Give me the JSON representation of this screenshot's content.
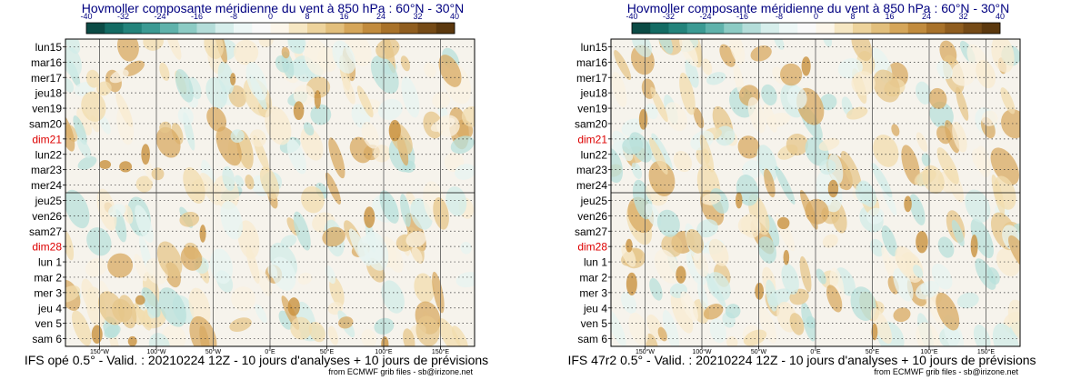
{
  "chart_data": [
    {
      "type": "heatmap",
      "title": "Hovmoller composante méridienne du vent à 850 hPa : 60°N - 30°N",
      "colorbar": {
        "ticks": [
          "-40",
          "-32",
          "-24",
          "-16",
          "-8",
          "0",
          "8",
          "16",
          "24",
          "32",
          "40"
        ],
        "colors": [
          "#0b4b45",
          "#136b63",
          "#23837b",
          "#3b9a93",
          "#5fb2ab",
          "#8ccbc4",
          "#b4ddd9",
          "#d6eeeb",
          "#edf7f6",
          "#f9f9f9",
          "#fcf6ea",
          "#f6e7c3",
          "#edd39c",
          "#e2bf7c",
          "#d5a65a",
          "#c18b3d",
          "#a8722a",
          "#8f5d1f",
          "#754a16",
          "#5b380e"
        ]
      },
      "x_tick_labels": [
        "150°W",
        "100°W",
        "50°W",
        "0°E",
        "50°E",
        "100°E",
        "150°E"
      ],
      "y_tick_labels": [
        "lun15",
        "mar16",
        "mer17",
        "jeu18",
        "ven19",
        "sam20",
        "dim21",
        "lun22",
        "mar23",
        "mer24",
        "jeu25",
        "ven26",
        "sam27",
        "dim28",
        "lun 1",
        "mar 2",
        "mer 3",
        "jeu 4",
        "ven 5",
        "sam 6"
      ],
      "weekend_color": "#dd0000",
      "highlight_rows": [
        "dim21",
        "dim28"
      ],
      "analysis_forecast_split": "jeu25",
      "footer": "IFS opé 0.5° - Valid. : 20210224 12Z - 10 jours d'analyses + 10 jours de prévisions",
      "credit": "from ECMWF grib files - sb@irizone.net"
    },
    {
      "type": "heatmap",
      "title": "Hovmoller composante méridienne du vent à 850 hPa : 60°N - 30°N",
      "colorbar": {
        "ticks": [
          "-40",
          "-32",
          "-24",
          "-16",
          "-8",
          "0",
          "8",
          "16",
          "24",
          "32",
          "40"
        ],
        "colors": [
          "#0b4b45",
          "#136b63",
          "#23837b",
          "#3b9a93",
          "#5fb2ab",
          "#8ccbc4",
          "#b4ddd9",
          "#d6eeeb",
          "#edf7f6",
          "#f9f9f9",
          "#fcf6ea",
          "#f6e7c3",
          "#edd39c",
          "#e2bf7c",
          "#d5a65a",
          "#c18b3d",
          "#a8722a",
          "#8f5d1f",
          "#754a16",
          "#5b380e"
        ]
      },
      "x_tick_labels": [
        "150°W",
        "100°W",
        "50°W",
        "0°E",
        "50°E",
        "100°E",
        "150°E"
      ],
      "y_tick_labels": [
        "lun15",
        "mar16",
        "mer17",
        "jeu18",
        "ven19",
        "sam20",
        "dim21",
        "lun22",
        "mar23",
        "mer24",
        "jeu25",
        "ven26",
        "sam27",
        "dim28",
        "lun 1",
        "mar 2",
        "mer 3",
        "jeu 4",
        "ven 5",
        "sam 6"
      ],
      "weekend_color": "#dd0000",
      "highlight_rows": [
        "dim21",
        "dim28"
      ],
      "analysis_forecast_split": "jeu25",
      "footer": "IFS 47r2 0.5° - Valid. : 20210224 12Z - 10 jours d'analyses + 10 jours de prévisions",
      "credit": "from ECMWF grib files - sb@irizone.net"
    }
  ]
}
